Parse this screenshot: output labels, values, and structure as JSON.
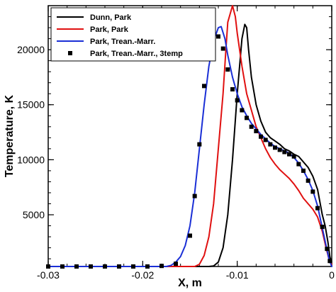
{
  "chart_data": {
    "type": "line",
    "xlabel": "X, m",
    "ylabel": "Temperature, K",
    "xlim": [
      -0.03,
      0.0
    ],
    "ylim": [
      300,
      24000
    ],
    "x_ticks": [
      -0.03,
      -0.02,
      -0.01,
      0
    ],
    "x_tick_labels": [
      "-0.03",
      "-0.02",
      "-0.01",
      "0"
    ],
    "y_ticks": [
      5000,
      10000,
      15000,
      20000
    ],
    "y_tick_labels": [
      "5000",
      "10000",
      "15000",
      "20000"
    ],
    "grid": false,
    "legend_position": "top-left",
    "series": [
      {
        "name": "Dunn, Park",
        "color": "#000000",
        "marker": "none",
        "x": [
          -0.03,
          -0.013,
          -0.0125,
          -0.012,
          -0.0115,
          -0.011,
          -0.0105,
          -0.01,
          -0.0095,
          -0.0092,
          -0.009,
          -0.0088,
          -0.0085,
          -0.008,
          -0.0075,
          -0.007,
          -0.0065,
          -0.006,
          -0.0055,
          -0.005,
          -0.0045,
          -0.004,
          -0.0035,
          -0.003,
          -0.0025,
          -0.002,
          -0.0015,
          -0.001,
          -0.0007,
          -0.0004,
          -0.0002,
          0.0
        ],
        "y": [
          300,
          300,
          350,
          700,
          2000,
          5000,
          10000,
          16000,
          21000,
          22300,
          22000,
          20000,
          17500,
          15000,
          13500,
          12500,
          12000,
          11700,
          11400,
          11000,
          10800,
          10500,
          10300,
          9800,
          9300,
          8500,
          7300,
          5000,
          4000,
          2500,
          1200,
          500
        ]
      },
      {
        "name": "Park, Park",
        "color": "#e01010",
        "marker": "none",
        "x": [
          -0.03,
          -0.0145,
          -0.014,
          -0.0135,
          -0.013,
          -0.0125,
          -0.012,
          -0.0115,
          -0.0112,
          -0.011,
          -0.0105,
          -0.0102,
          -0.01,
          -0.0095,
          -0.009,
          -0.0085,
          -0.008,
          -0.0075,
          -0.007,
          -0.0065,
          -0.006,
          -0.0055,
          -0.005,
          -0.0045,
          -0.004,
          -0.0035,
          -0.003,
          -0.0025,
          -0.002,
          -0.0015,
          -0.001,
          -0.0006,
          -0.0003,
          0.0
        ],
        "y": [
          300,
          300,
          500,
          1300,
          3000,
          6000,
          11000,
          16000,
          20000,
          22500,
          24000,
          23000,
          21500,
          18500,
          16000,
          14500,
          13000,
          12000,
          11000,
          10200,
          9600,
          9100,
          8700,
          8300,
          7800,
          7200,
          6500,
          6000,
          5500,
          4800,
          3500,
          2000,
          1000,
          500
        ]
      },
      {
        "name": "Park, Trean.-Marr.",
        "color": "#1a2fd6",
        "marker": "none",
        "x": [
          -0.03,
          -0.0175,
          -0.017,
          -0.0165,
          -0.016,
          -0.0155,
          -0.015,
          -0.0145,
          -0.014,
          -0.0135,
          -0.013,
          -0.0125,
          -0.012,
          -0.0117,
          -0.0113,
          -0.011,
          -0.0105,
          -0.01,
          -0.0095,
          -0.009,
          -0.0085,
          -0.008,
          -0.0075,
          -0.007,
          -0.0065,
          -0.006,
          -0.0055,
          -0.005,
          -0.0045,
          -0.004,
          -0.0035,
          -0.003,
          -0.0025,
          -0.002,
          -0.0015,
          -0.001,
          -0.0006,
          -0.0003,
          0.0
        ],
        "y": [
          300,
          300,
          400,
          700,
          1200,
          2200,
          4000,
          7000,
          11000,
          15000,
          18500,
          20800,
          22000,
          22100,
          21000,
          19500,
          17500,
          16000,
          14800,
          14000,
          13300,
          12800,
          12300,
          11900,
          11500,
          11200,
          11000,
          10800,
          10600,
          10200,
          9700,
          9000,
          8200,
          7200,
          5800,
          3800,
          2200,
          1000,
          300
        ]
      },
      {
        "name": "Park, Trean.-Marr., 3temp",
        "color": "#000000",
        "marker": "square",
        "x": [
          -0.03,
          -0.0285,
          -0.027,
          -0.0255,
          -0.024,
          -0.0225,
          -0.021,
          -0.0195,
          -0.018,
          -0.0165,
          -0.015,
          -0.0145,
          -0.014,
          -0.0135,
          -0.013,
          -0.0125,
          -0.012,
          -0.0115,
          -0.011,
          -0.0105,
          -0.01,
          -0.0095,
          -0.009,
          -0.0085,
          -0.008,
          -0.0075,
          -0.007,
          -0.0065,
          -0.006,
          -0.0055,
          -0.005,
          -0.0045,
          -0.004,
          -0.0035,
          -0.003,
          -0.0025,
          -0.002,
          -0.0015,
          -0.001,
          -0.0005,
          -0.0002
        ],
        "y": [
          300,
          300,
          300,
          300,
          300,
          300,
          300,
          300,
          350,
          550,
          3100,
          6700,
          11400,
          16700,
          20400,
          21600,
          21200,
          20100,
          18200,
          16400,
          15400,
          14500,
          13800,
          13000,
          12600,
          12100,
          11800,
          11400,
          11100,
          10900,
          10700,
          10500,
          10300,
          9600,
          9000,
          8100,
          7100,
          5600,
          3900,
          1900,
          800
        ]
      }
    ]
  }
}
